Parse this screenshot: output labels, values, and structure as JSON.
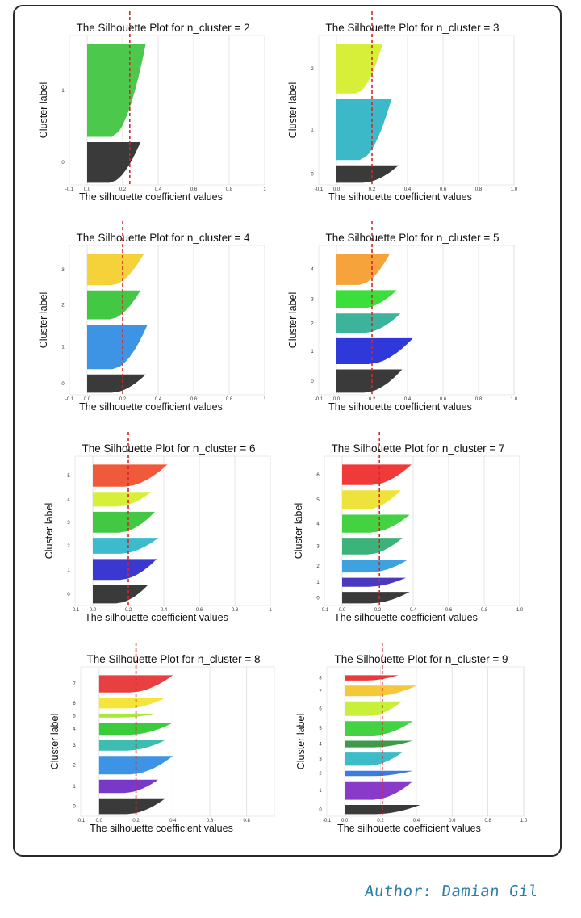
{
  "author": "Author: Damian Gil",
  "avg_line_color": "#d62728",
  "chart_data": [
    {
      "type": "area",
      "title": "The Silhouette Plot for n_cluster = 2",
      "xlabel": "The silhouette coefficient values",
      "ylabel": "Cluster label",
      "xticks": [
        "-0.1",
        "0.0",
        "0.2",
        "0.4",
        "0.6",
        "0.8",
        "1"
      ],
      "xlim": [
        -0.1,
        1.0
      ],
      "average": 0.24,
      "series": [
        {
          "name": "0",
          "size": 0.28,
          "max": 0.3,
          "color": "#3a3a3a"
        },
        {
          "name": "1",
          "size": 0.64,
          "max": 0.33,
          "color": "#4cc94c"
        }
      ]
    },
    {
      "type": "area",
      "title": "The Silhouette Plot for n_cluster = 3",
      "xlabel": "The silhouette coefficient values",
      "ylabel": "Cluster label",
      "xticks": [
        "-0.1",
        "0.0",
        "0.2",
        "0.4",
        "0.6",
        "0.8",
        "1.0"
      ],
      "xlim": [
        -0.1,
        1.0
      ],
      "average": 0.2,
      "series": [
        {
          "name": "0",
          "size": 0.12,
          "max": 0.35,
          "color": "#3a3a3a"
        },
        {
          "name": "1",
          "size": 0.42,
          "max": 0.31,
          "color": "#3cb9c9"
        },
        {
          "name": "2",
          "size": 0.34,
          "max": 0.26,
          "color": "#d8ef3a"
        }
      ]
    },
    {
      "type": "area",
      "title": "The Silhouette Plot for n_cluster = 4",
      "xlabel": "The silhouette coefficient values",
      "ylabel": "Cluster label",
      "xticks": [
        "-0.1",
        "0.0",
        "0.2",
        "0.4",
        "0.6",
        "0.8",
        "1"
      ],
      "xlim": [
        -0.1,
        1.0
      ],
      "average": 0.2,
      "series": [
        {
          "name": "0",
          "size": 0.14,
          "max": 0.33,
          "color": "#3a3a3a"
        },
        {
          "name": "1",
          "size": 0.34,
          "max": 0.34,
          "color": "#3e94e4"
        },
        {
          "name": "2",
          "size": 0.22,
          "max": 0.3,
          "color": "#42c842"
        },
        {
          "name": "3",
          "size": 0.24,
          "max": 0.32,
          "color": "#f5d13a"
        }
      ]
    },
    {
      "type": "area",
      "title": "The Silhouette Plot for n_cluster = 5",
      "xlabel": "The silhouette coefficient values",
      "ylabel": "Cluster label",
      "xticks": [
        "-0.1",
        "0.0",
        "0.2",
        "0.4",
        "0.6",
        "0.8",
        "1.0"
      ],
      "xlim": [
        -0.1,
        1.0
      ],
      "average": 0.2,
      "series": [
        {
          "name": "0",
          "size": 0.18,
          "max": 0.37,
          "color": "#3a3a3a"
        },
        {
          "name": "1",
          "size": 0.2,
          "max": 0.43,
          "color": "#2f38d8"
        },
        {
          "name": "2",
          "size": 0.15,
          "max": 0.36,
          "color": "#3cb39a"
        },
        {
          "name": "3",
          "size": 0.14,
          "max": 0.34,
          "color": "#3bde3b"
        },
        {
          "name": "4",
          "size": 0.24,
          "max": 0.3,
          "color": "#f5a33a"
        }
      ]
    },
    {
      "type": "area",
      "title": "The Silhouette Plot for n_cluster = 6",
      "xlabel": "The silhouette coefficient values",
      "ylabel": "Cluster label",
      "xticks": [
        "-0.1",
        "0.0",
        "0.2",
        "0.4",
        "0.6",
        "0.8",
        "1"
      ],
      "xlim": [
        -0.1,
        1.0
      ],
      "average": 0.2,
      "series": [
        {
          "name": "0",
          "size": 0.15,
          "max": 0.31,
          "color": "#3a3a3a"
        },
        {
          "name": "1",
          "size": 0.17,
          "max": 0.36,
          "color": "#3a38d0"
        },
        {
          "name": "2",
          "size": 0.13,
          "max": 0.37,
          "color": "#3cbbcc"
        },
        {
          "name": "3",
          "size": 0.17,
          "max": 0.35,
          "color": "#42c842"
        },
        {
          "name": "4",
          "size": 0.12,
          "max": 0.33,
          "color": "#d8ef3a"
        },
        {
          "name": "5",
          "size": 0.18,
          "max": 0.42,
          "color": "#f05a3a"
        }
      ]
    },
    {
      "type": "area",
      "title": "The Silhouette Plot for n_cluster = 7",
      "xlabel": "The silhouette coefficient values",
      "ylabel": "Cluster label",
      "xticks": [
        "-0.1",
        "0.0",
        "0.2",
        "0.4",
        "0.6",
        "0.8",
        "1.0"
      ],
      "xlim": [
        -0.1,
        1.0
      ],
      "average": 0.21,
      "series": [
        {
          "name": "0",
          "size": 0.09,
          "max": 0.38,
          "color": "#3a3a3a"
        },
        {
          "name": "1",
          "size": 0.07,
          "max": 0.36,
          "color": "#4a38c0"
        },
        {
          "name": "2",
          "size": 0.1,
          "max": 0.37,
          "color": "#3ea2e0"
        },
        {
          "name": "3",
          "size": 0.13,
          "max": 0.34,
          "color": "#3cb37a"
        },
        {
          "name": "4",
          "size": 0.14,
          "max": 0.38,
          "color": "#42d242"
        },
        {
          "name": "5",
          "size": 0.15,
          "max": 0.33,
          "color": "#eee33a"
        },
        {
          "name": "6",
          "size": 0.16,
          "max": 0.39,
          "color": "#f03a3a"
        }
      ]
    },
    {
      "type": "area",
      "title": "The Silhouette Plot for n_cluster = 8",
      "xlabel": "The silhouette coefficient values",
      "ylabel": "Cluster label",
      "xticks": [
        "-0.1",
        "0.0",
        "0.2",
        "0.4",
        "0.6",
        "0.8"
      ],
      "xlim": [
        -0.1,
        0.95
      ],
      "average": 0.2,
      "series": [
        {
          "name": "0",
          "size": 0.12,
          "max": 0.36,
          "color": "#3a3a3a"
        },
        {
          "name": "1",
          "size": 0.1,
          "max": 0.32,
          "color": "#7a38c8"
        },
        {
          "name": "2",
          "size": 0.14,
          "max": 0.4,
          "color": "#3e94e4"
        },
        {
          "name": "3",
          "size": 0.08,
          "max": 0.36,
          "color": "#3cbdb0"
        },
        {
          "name": "4",
          "size": 0.09,
          "max": 0.4,
          "color": "#3bcc3b"
        },
        {
          "name": "5",
          "size": 0.03,
          "max": 0.3,
          "color": "#a8e83a"
        },
        {
          "name": "6",
          "size": 0.08,
          "max": 0.36,
          "color": "#f5e53a"
        },
        {
          "name": "7",
          "size": 0.13,
          "max": 0.4,
          "color": "#e84040"
        }
      ]
    },
    {
      "type": "area",
      "title": "The Silhouette Plot for n_cluster = 9",
      "xlabel": "The silhouette coefficient values",
      "ylabel": "Cluster label",
      "xticks": [
        "-0.1",
        "0.0",
        "0.2",
        "0.4",
        "0.6",
        "0.8",
        "1.0"
      ],
      "xlim": [
        -0.1,
        1.0
      ],
      "average": 0.21,
      "series": [
        {
          "name": "0",
          "size": 0.07,
          "max": 0.42,
          "color": "#3a3a3a"
        },
        {
          "name": "1",
          "size": 0.14,
          "max": 0.38,
          "color": "#8a3ac8"
        },
        {
          "name": "2",
          "size": 0.04,
          "max": 0.38,
          "color": "#3e7ae0"
        },
        {
          "name": "3",
          "size": 0.1,
          "max": 0.32,
          "color": "#3cbbc8"
        },
        {
          "name": "4",
          "size": 0.05,
          "max": 0.38,
          "color": "#3c9a4a"
        },
        {
          "name": "5",
          "size": 0.11,
          "max": 0.38,
          "color": "#42d242"
        },
        {
          "name": "6",
          "size": 0.11,
          "max": 0.32,
          "color": "#c8ef3a"
        },
        {
          "name": "7",
          "size": 0.08,
          "max": 0.4,
          "color": "#f5c83a"
        },
        {
          "name": "8",
          "size": 0.04,
          "max": 0.3,
          "color": "#e83a3a"
        }
      ]
    }
  ]
}
